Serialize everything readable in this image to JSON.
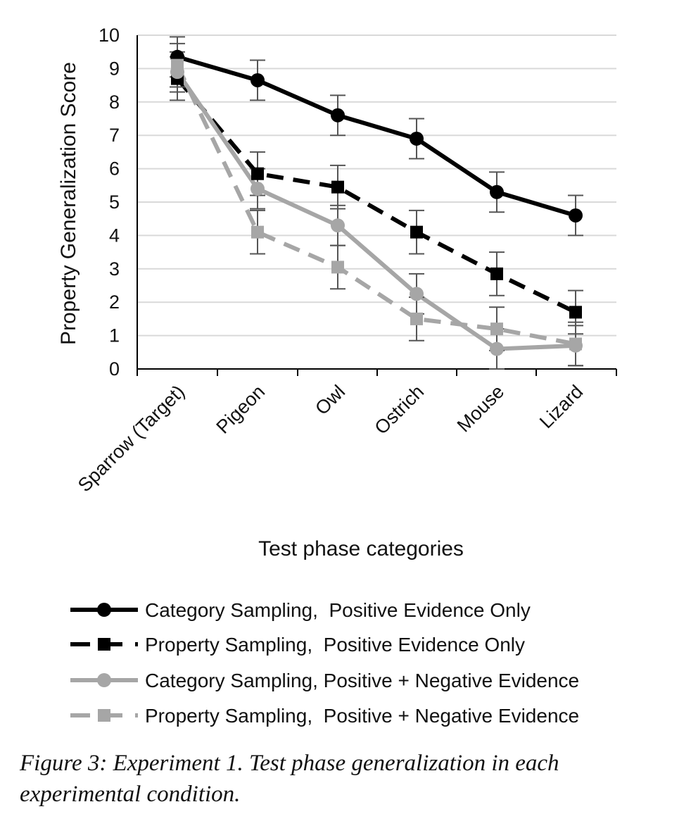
{
  "chart_data": {
    "type": "line",
    "categories": [
      "Sparrow (Target)",
      "Pigeon",
      "Owl",
      "Ostrich",
      "Mouse",
      "Lizard"
    ],
    "ylabel": "Property Generalization Score",
    "xlabel": "Test phase categories",
    "ylim": [
      0,
      10
    ],
    "yticks": [
      0,
      1,
      2,
      3,
      4,
      5,
      6,
      7,
      8,
      9,
      10
    ],
    "grid": true,
    "legend_position": "bottom",
    "series": [
      {
        "name": "Category Sampling,  Positive Evidence Only",
        "values": [
          9.35,
          8.65,
          7.6,
          6.9,
          5.3,
          4.6
        ],
        "errors": [
          0.6,
          0.6,
          0.6,
          0.6,
          0.6,
          0.6
        ],
        "color": "#000000",
        "dash": "solid",
        "marker": "circle"
      },
      {
        "name": "Property Sampling,  Positive Evidence Only",
        "values": [
          8.7,
          5.85,
          5.45,
          4.1,
          2.85,
          1.7
        ],
        "errors": [
          0.65,
          0.65,
          0.65,
          0.65,
          0.65,
          0.65
        ],
        "color": "#000000",
        "dash": "dashed",
        "marker": "square"
      },
      {
        "name": "Category Sampling, Positive + Negative Evidence",
        "values": [
          8.9,
          5.4,
          4.3,
          2.25,
          0.6,
          0.7
        ],
        "errors": [
          0.6,
          0.6,
          0.6,
          0.6,
          0.6,
          0.6
        ],
        "color": "#a6a6a6",
        "dash": "solid",
        "marker": "circle"
      },
      {
        "name": "Property Sampling,  Positive + Negative Evidence",
        "values": [
          9.1,
          4.1,
          3.05,
          1.5,
          1.2,
          0.75
        ],
        "errors": [
          0.65,
          0.65,
          0.65,
          0.65,
          0.65,
          0.65
        ],
        "color": "#a6a6a6",
        "dash": "dashed",
        "marker": "square"
      }
    ]
  },
  "caption": "Figure 3: Experiment 1. Test phase generalization in each experimental condition."
}
